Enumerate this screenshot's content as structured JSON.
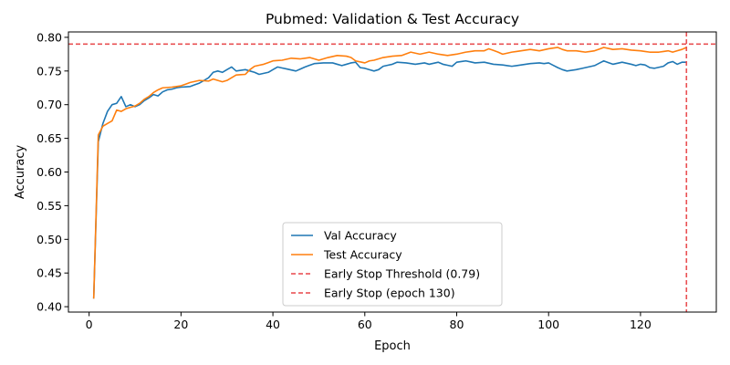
{
  "chart_data": {
    "type": "line",
    "title": "Pubmed: Validation & Test Accuracy",
    "xlabel": "Epoch",
    "ylabel": "Accuracy",
    "xlim": [
      -4.5,
      136.5
    ],
    "ylim": [
      0.392,
      0.808
    ],
    "xticks": [
      0,
      20,
      40,
      60,
      80,
      100,
      120
    ],
    "yticks": [
      0.4,
      0.45,
      0.5,
      0.55,
      0.6,
      0.65,
      0.7,
      0.75,
      0.8
    ],
    "yticks_format": 2,
    "grid": false,
    "legend_position": "lower-center",
    "anchor_points": {
      "val": [
        [
          1,
          0.412
        ],
        [
          2,
          0.645
        ],
        [
          3,
          0.672
        ],
        [
          4,
          0.69
        ],
        [
          5,
          0.7
        ],
        [
          6,
          0.702
        ],
        [
          7,
          0.712
        ],
        [
          8,
          0.697
        ],
        [
          9,
          0.7
        ],
        [
          10,
          0.697
        ],
        [
          11,
          0.7
        ],
        [
          12,
          0.706
        ],
        [
          13,
          0.71
        ],
        [
          14,
          0.715
        ],
        [
          15,
          0.713
        ],
        [
          16,
          0.719
        ],
        [
          17,
          0.722
        ],
        [
          18,
          0.723
        ],
        [
          19,
          0.725
        ],
        [
          20,
          0.726
        ],
        [
          22,
          0.727
        ],
        [
          24,
          0.732
        ],
        [
          26,
          0.74
        ],
        [
          27,
          0.748
        ],
        [
          28,
          0.75
        ],
        [
          29,
          0.748
        ],
        [
          30,
          0.752
        ],
        [
          31,
          0.756
        ],
        [
          32,
          0.75
        ],
        [
          34,
          0.752
        ],
        [
          36,
          0.748
        ],
        [
          37,
          0.745
        ],
        [
          39,
          0.748
        ],
        [
          41,
          0.756
        ],
        [
          43,
          0.753
        ],
        [
          45,
          0.75
        ],
        [
          47,
          0.756
        ],
        [
          49,
          0.761
        ],
        [
          51,
          0.762
        ],
        [
          53,
          0.762
        ],
        [
          55,
          0.758
        ],
        [
          57,
          0.762
        ],
        [
          58,
          0.763
        ],
        [
          59,
          0.755
        ],
        [
          60,
          0.754
        ],
        [
          62,
          0.75
        ],
        [
          63,
          0.752
        ],
        [
          64,
          0.757
        ],
        [
          66,
          0.76
        ],
        [
          67,
          0.763
        ],
        [
          69,
          0.762
        ],
        [
          71,
          0.76
        ],
        [
          72,
          0.761
        ],
        [
          73,
          0.762
        ],
        [
          74,
          0.76
        ],
        [
          76,
          0.763
        ],
        [
          77,
          0.76
        ],
        [
          79,
          0.757
        ],
        [
          80,
          0.763
        ],
        [
          82,
          0.765
        ],
        [
          84,
          0.762
        ],
        [
          86,
          0.763
        ],
        [
          88,
          0.76
        ],
        [
          90,
          0.759
        ],
        [
          92,
          0.757
        ],
        [
          94,
          0.759
        ],
        [
          96,
          0.761
        ],
        [
          98,
          0.762
        ],
        [
          99,
          0.761
        ],
        [
          100,
          0.762
        ],
        [
          102,
          0.755
        ],
        [
          103,
          0.752
        ],
        [
          104,
          0.75
        ],
        [
          106,
          0.752
        ],
        [
          108,
          0.755
        ],
        [
          110,
          0.758
        ],
        [
          112,
          0.765
        ],
        [
          114,
          0.76
        ],
        [
          116,
          0.763
        ],
        [
          118,
          0.76
        ],
        [
          119,
          0.758
        ],
        [
          120,
          0.76
        ],
        [
          121,
          0.759
        ],
        [
          122,
          0.755
        ],
        [
          123,
          0.754
        ],
        [
          125,
          0.757
        ],
        [
          126,
          0.762
        ],
        [
          127,
          0.764
        ],
        [
          128,
          0.76
        ],
        [
          129,
          0.763
        ],
        [
          130,
          0.763
        ]
      ],
      "test": [
        [
          1,
          0.412
        ],
        [
          2,
          0.655
        ],
        [
          3,
          0.668
        ],
        [
          4,
          0.672
        ],
        [
          5,
          0.676
        ],
        [
          6,
          0.692
        ],
        [
          7,
          0.69
        ],
        [
          8,
          0.694
        ],
        [
          9,
          0.696
        ],
        [
          10,
          0.698
        ],
        [
          11,
          0.702
        ],
        [
          12,
          0.708
        ],
        [
          13,
          0.712
        ],
        [
          14,
          0.718
        ],
        [
          15,
          0.722
        ],
        [
          16,
          0.725
        ],
        [
          18,
          0.726
        ],
        [
          20,
          0.728
        ],
        [
          22,
          0.733
        ],
        [
          24,
          0.736
        ],
        [
          26,
          0.735
        ],
        [
          27,
          0.738
        ],
        [
          29,
          0.734
        ],
        [
          30,
          0.736
        ],
        [
          32,
          0.744
        ],
        [
          34,
          0.745
        ],
        [
          35,
          0.752
        ],
        [
          36,
          0.757
        ],
        [
          38,
          0.76
        ],
        [
          40,
          0.765
        ],
        [
          42,
          0.766
        ],
        [
          44,
          0.769
        ],
        [
          46,
          0.768
        ],
        [
          48,
          0.77
        ],
        [
          50,
          0.766
        ],
        [
          52,
          0.77
        ],
        [
          54,
          0.773
        ],
        [
          56,
          0.772
        ],
        [
          57,
          0.77
        ],
        [
          58,
          0.765
        ],
        [
          60,
          0.762
        ],
        [
          61,
          0.765
        ],
        [
          62,
          0.766
        ],
        [
          64,
          0.77
        ],
        [
          66,
          0.772
        ],
        [
          68,
          0.773
        ],
        [
          70,
          0.778
        ],
        [
          72,
          0.775
        ],
        [
          74,
          0.778
        ],
        [
          76,
          0.775
        ],
        [
          78,
          0.773
        ],
        [
          80,
          0.775
        ],
        [
          82,
          0.778
        ],
        [
          84,
          0.78
        ],
        [
          86,
          0.78
        ],
        [
          87,
          0.783
        ],
        [
          89,
          0.778
        ],
        [
          90,
          0.775
        ],
        [
          92,
          0.778
        ],
        [
          94,
          0.78
        ],
        [
          96,
          0.782
        ],
        [
          98,
          0.78
        ],
        [
          100,
          0.783
        ],
        [
          102,
          0.785
        ],
        [
          103,
          0.782
        ],
        [
          104,
          0.78
        ],
        [
          106,
          0.78
        ],
        [
          108,
          0.778
        ],
        [
          110,
          0.78
        ],
        [
          112,
          0.785
        ],
        [
          114,
          0.782
        ],
        [
          116,
          0.783
        ],
        [
          118,
          0.781
        ],
        [
          120,
          0.78
        ],
        [
          122,
          0.778
        ],
        [
          124,
          0.778
        ],
        [
          126,
          0.78
        ],
        [
          127,
          0.778
        ],
        [
          128,
          0.78
        ],
        [
          129,
          0.782
        ],
        [
          130,
          0.785
        ]
      ]
    },
    "series": [
      {
        "name": "Val Accuracy",
        "color": "#1f77b4",
        "key": "val"
      },
      {
        "name": "Test Accuracy",
        "color": "#ff7f0e",
        "key": "test"
      }
    ],
    "reference_lines": [
      {
        "name": "Early Stop Threshold (0.79)",
        "orientation": "horizontal",
        "value": 0.79,
        "color": "#e8474a",
        "style": "dashed"
      },
      {
        "name": "Early Stop (epoch 130)",
        "orientation": "vertical",
        "value": 130,
        "color": "#e8474a",
        "style": "dashed"
      }
    ]
  }
}
